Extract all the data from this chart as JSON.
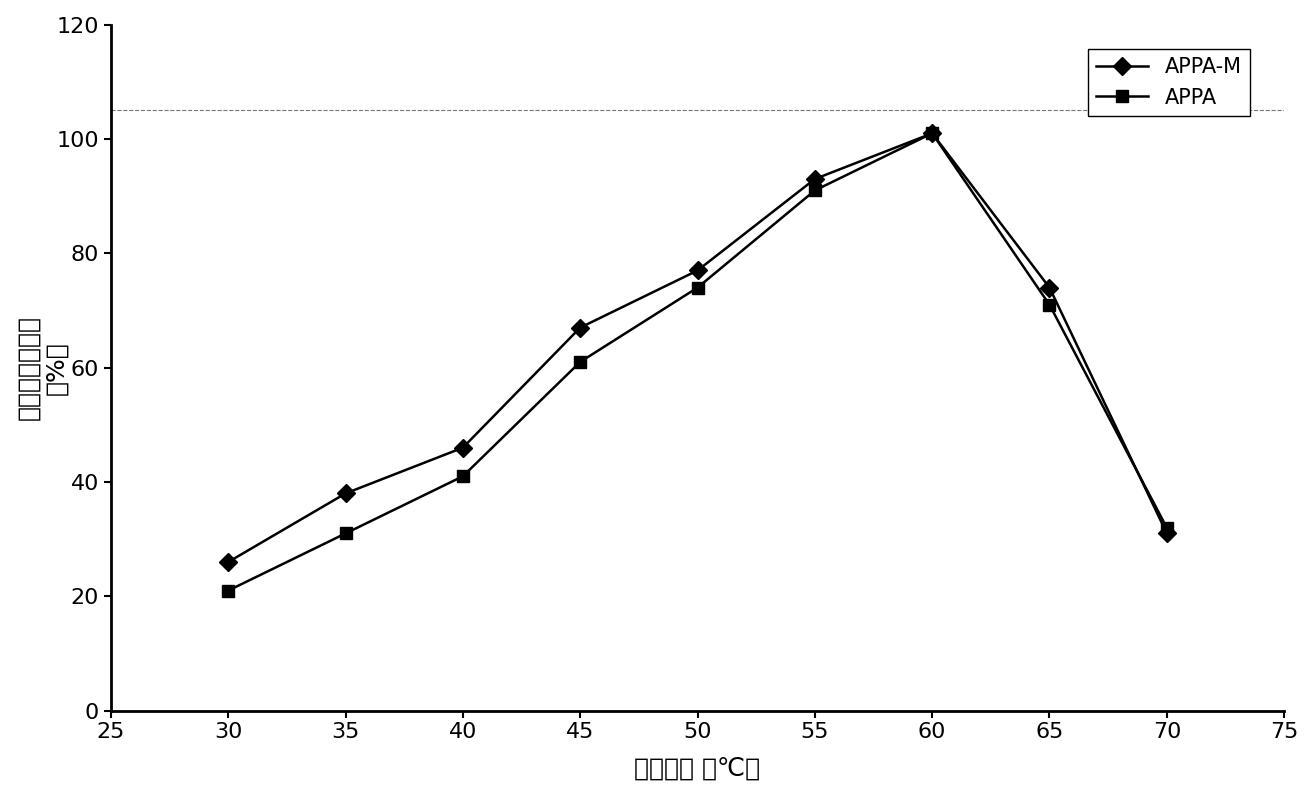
{
  "x": [
    30,
    35,
    40,
    45,
    50,
    55,
    60,
    65,
    70
  ],
  "appa_m": [
    26,
    38,
    46,
    67,
    77,
    93,
    101,
    74,
    31
  ],
  "appa": [
    21,
    31,
    41,
    61,
    74,
    91,
    101,
    71,
    32
  ],
  "xlim": [
    25,
    75
  ],
  "ylim": [
    0,
    120
  ],
  "xticks": [
    25,
    30,
    35,
    40,
    45,
    50,
    55,
    60,
    65,
    70,
    75
  ],
  "yticks": [
    0,
    20,
    40,
    60,
    80,
    100,
    120
  ],
  "xlabel": "反应温度 （℃）",
  "ylabel_line1": "相对植酸酶活性",
  "ylabel_line2": "（%）",
  "legend_appa_m": "APPA-M",
  "legend_appa": "APPA",
  "hline_y": 105,
  "line_color": "#000000",
  "bg_color": "#ffffff",
  "marker_appa_m": "D",
  "marker_appa": "s"
}
